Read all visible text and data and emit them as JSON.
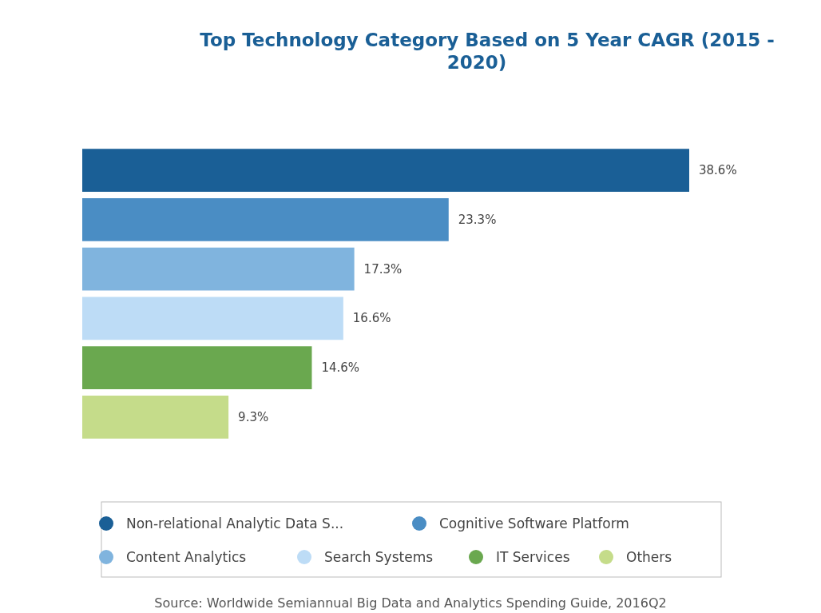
{
  "chart_data": {
    "type": "bar",
    "orientation": "horizontal",
    "stacked": true,
    "title": "Top Technology Category Based on 5 Year CAGR (2015 - 2020)",
    "categories": [
      null,
      null,
      null,
      null,
      null,
      null
    ],
    "series": [
      {
        "name": "Non-relational Analytic Data S...",
        "color": "#1a5f96",
        "values": [
          38.6,
          null,
          null,
          null,
          null,
          null
        ],
        "value_labels": [
          "38.6%",
          null,
          null,
          null,
          null,
          null
        ]
      },
      {
        "name": "Cognitive Software Platform",
        "color": "#4a8dc4",
        "values": [
          null,
          23.3,
          null,
          null,
          null,
          null
        ],
        "value_labels": [
          null,
          "23.3%",
          null,
          null,
          null,
          null
        ]
      },
      {
        "name": "Content Analytics",
        "color": "#80b4de",
        "values": [
          null,
          null,
          17.3,
          null,
          null,
          null
        ],
        "value_labels": [
          null,
          null,
          "17.3%",
          null,
          null,
          null
        ]
      },
      {
        "name": "Search Systems",
        "color": "#bddcf6",
        "values": [
          null,
          null,
          null,
          16.6,
          null,
          null
        ],
        "value_labels": [
          null,
          null,
          null,
          "16.6%",
          null,
          null
        ]
      },
      {
        "name": "IT Services",
        "color": "#6aa84f",
        "values": [
          null,
          null,
          null,
          null,
          14.6,
          null
        ],
        "value_labels": [
          null,
          null,
          null,
          null,
          "14.6%",
          null
        ]
      },
      {
        "name": "Others",
        "color": "#c5dc8a",
        "values": [
          null,
          null,
          null,
          null,
          null,
          9.3
        ],
        "value_labels": [
          null,
          null,
          null,
          null,
          null,
          "9.3%"
        ]
      }
    ],
    "legend": "bottom",
    "tick_labels": false,
    "annotations": [
      "Source: Worldwide Semiannual Big Data and Analytics Spending Guide, 2016Q2"
    ]
  }
}
